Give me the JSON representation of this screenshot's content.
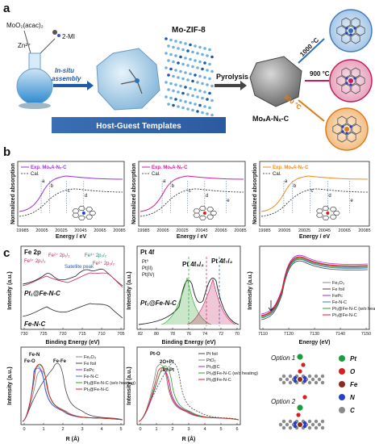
{
  "panel_a": {
    "letter": "a",
    "precursor_1": "MoO₂(acac)₂",
    "precursor_2": "2-MI",
    "precursor_3": "Zn²⁺",
    "step_1a": "In-situ",
    "step_1b": "assembly",
    "framework": "Mo-ZIF-8",
    "step_2": "Pyrolysis",
    "product": "MoₛA-Nₓ-C",
    "temps": [
      "1000 °C",
      "900 °C",
      "800 °C"
    ],
    "banner": "Host-Guest Templates"
  },
  "panel_b": {
    "letter": "b",
    "ylabel": "Normalized absorption",
    "xlabel": "Energy / eV",
    "xticks": [
      "19985",
      "20005",
      "20025",
      "20045",
      "20065",
      "20085"
    ],
    "subplots": [
      {
        "legend_exp": "Exp. MoₛA-Nₓ-C",
        "legend_cal": "Cal.",
        "color": "#9b30d9",
        "marks": [
          "a",
          "b",
          "c",
          "d"
        ]
      },
      {
        "legend_exp": "Exp. MoₛA-Nₓ-C",
        "legend_cal": "Cal.",
        "color": "#d81b9a",
        "marks": [
          "a",
          "b",
          "c",
          "d",
          "e"
        ]
      },
      {
        "legend_exp": "Exp. MoₛA-Nₓ-C",
        "legend_cal": "Cal.",
        "color": "#f08a24",
        "marks": [
          "a",
          "b",
          "c",
          "d",
          "e"
        ]
      }
    ]
  },
  "panel_c": {
    "letter": "c",
    "fe2p": {
      "title": "Fe 2p",
      "labels": [
        "Fe³⁺ 2p₁/₂",
        "Fe²⁺ 2p₁/₂",
        "Fe³⁺ 2p₃/₂",
        "Fe²⁺ 2p₃/₂",
        "Satellite peak"
      ],
      "samples": [
        "Pt₁@Fe-N-C",
        "Fe-N-C"
      ],
      "xlabel": "Binding Energy (eV)",
      "ylabel": "Intensity (a.u.)",
      "xticks": [
        "730",
        "725",
        "720",
        "715",
        "710",
        "705"
      ]
    },
    "pt4f": {
      "title": "Pt 4f",
      "legend": [
        "Pt⁰",
        "Pt(II)",
        "Pt(IV)"
      ],
      "peaks": [
        "Pt 4f₅/₂",
        "Pt 4f₇/₂"
      ],
      "sample": "Pt₁@Fe-N-C",
      "xlabel": "Binding Energy (eV)",
      "ylabel": "Intensity (a.u.)",
      "xticks": [
        "82",
        "80",
        "78",
        "76",
        "74",
        "72",
        "70"
      ]
    },
    "xanes": {
      "legend": [
        "Fe₂O₃",
        "Fe foil",
        "FePc",
        "Fe-N-C",
        "Pt₁@Fe-N-C (w/o heating)",
        "Pt₁@Fe-N-C"
      ],
      "colors": [
        "#888888",
        "#444444",
        "#9b30d9",
        "#2b7bd6",
        "#2ca02c",
        "#e41a1c"
      ],
      "xlabel": "Energy (eV)",
      "ylabel": "Intensity (a.u.)",
      "xticks": [
        "7110",
        "7120",
        "7130",
        "7140",
        "7150"
      ]
    },
    "exafs_fe": {
      "peaks": [
        "Fe-N",
        "Fe-O",
        "Fe-Fe"
      ],
      "legend": [
        "Fe₂O₃",
        "Fe foil",
        "FePc",
        "Fe-N-C",
        "Pt₁@Fe-N-C (w/o heating)",
        "Pt₁@Fe-N-C"
      ],
      "xlabel": "R (Å)",
      "ylabel": "Intensity (a.u.)",
      "xticks": [
        "0",
        "1",
        "2",
        "3",
        "4",
        "5"
      ]
    },
    "exafs_pt": {
      "peaks": [
        "Pt-O",
        "2O+Pt",
        "Pt-Pt"
      ],
      "legend": [
        "Pt foil",
        "PtO₂",
        "Pt₁@C",
        "Pt₁@Fe-N-C (w/o heating)",
        "Pt₁@Fe-N-C"
      ],
      "xlabel": "R (Å)",
      "ylabel": "Intensity (a.u.)",
      "xticks": [
        "0",
        "1",
        "2",
        "3",
        "4",
        "5",
        "6"
      ]
    },
    "models": {
      "option_1": "Option 1",
      "option_2": "Option 2",
      "atoms": [
        "Pt",
        "O",
        "Fe",
        "N",
        "C"
      ],
      "atom_colors": [
        "#1a9e3a",
        "#d62020",
        "#8b2a1e",
        "#2740c8",
        "#8a8a8a"
      ]
    }
  }
}
